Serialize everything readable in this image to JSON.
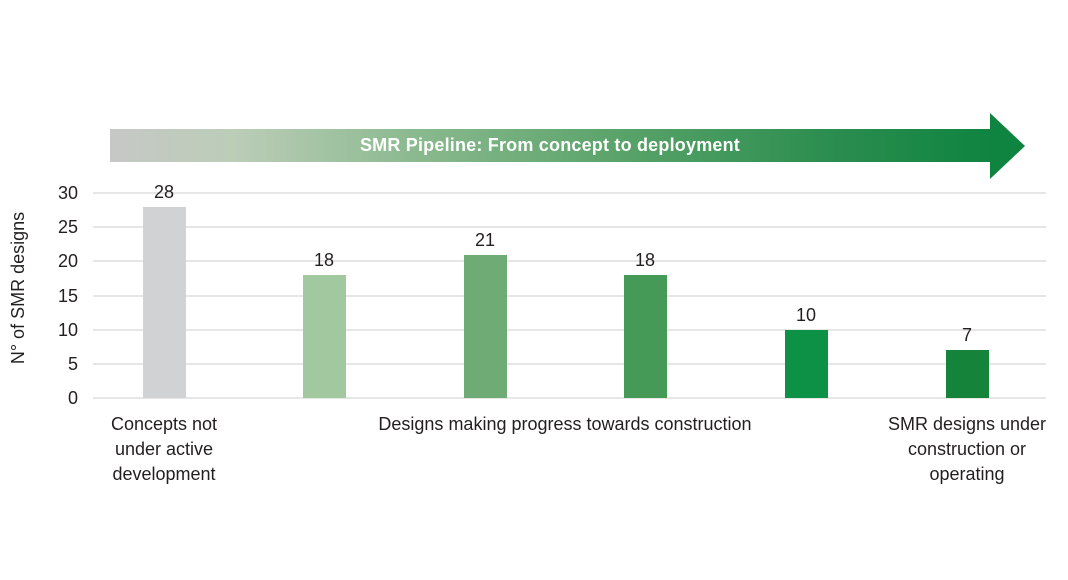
{
  "banner": {
    "title": "SMR Pipeline: From concept to deployment",
    "gradient_start_color": "#c6c8c6",
    "gradient_end_color": "#0f8440",
    "text_color": "#ffffff"
  },
  "chart_data": {
    "type": "bar",
    "title": "SMR Pipeline: From concept to deployment",
    "xlabel": "",
    "ylabel": "N° of SMR designs",
    "ylim": [
      0,
      30
    ],
    "yticks": [
      0,
      5,
      10,
      15,
      20,
      25,
      30
    ],
    "grid": true,
    "legend_position": "none",
    "values": [
      28,
      18,
      21,
      18,
      10,
      7
    ],
    "bar_colors": [
      "#d0d2d3",
      "#a2c89f",
      "#6fac75",
      "#459a58",
      "#0d9146",
      "#15843a"
    ],
    "value_labels": [
      "28",
      "18",
      "21",
      "18",
      "10",
      "7"
    ],
    "group_labels": [
      {
        "text": "Concepts not under active development",
        "bars": [
          0
        ]
      },
      {
        "text": "Designs making progress towards construction",
        "bars": [
          1,
          2,
          3,
          4
        ]
      },
      {
        "text": "SMR designs under construction or operating",
        "bars": [
          5
        ]
      }
    ],
    "text_color": "#231f20",
    "gridline_color": "#e6e6e6"
  }
}
